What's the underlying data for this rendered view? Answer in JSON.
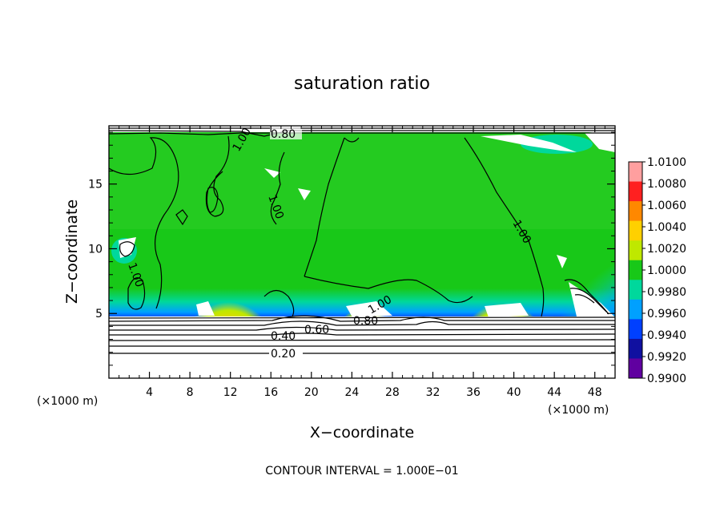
{
  "chart_data": {
    "type": "heatmap",
    "title": "saturation ratio",
    "xlabel": "X−coordinate",
    "ylabel": "Z−coordinate",
    "x_unit_left": "(×1000 m)",
    "x_unit_right": "(×1000 m)",
    "xlim": [
      0,
      50
    ],
    "ylim": [
      0,
      19.5
    ],
    "xticks": [
      4,
      8,
      12,
      16,
      20,
      24,
      28,
      32,
      36,
      40,
      44,
      48
    ],
    "yticks": [
      5,
      10,
      15
    ],
    "footer": "CONTOUR INTERVAL = 1.000E−01",
    "colorbar": {
      "levels": [
        "1.0100",
        "1.0080",
        "1.0060",
        "1.0040",
        "1.0020",
        "1.0000",
        "0.9980",
        "0.9960",
        "0.9940",
        "0.9920",
        "0.9900"
      ],
      "colors": [
        "#ff9f9f",
        "#ff2020",
        "#ff8800",
        "#ffd000",
        "#bfe800",
        "#18c818",
        "#00d89c",
        "#00a0ff",
        "#0040ff",
        "#1010a0",
        "#6000a0"
      ]
    },
    "contour_labels": [
      "0.80",
      "1.00",
      "1.00",
      "1.00",
      "1.00",
      "1.00",
      "0.80",
      "0.60",
      "0.40",
      "0.20"
    ],
    "contour_levels": [
      0.2,
      0.4,
      0.6,
      0.8,
      1.0
    ]
  }
}
